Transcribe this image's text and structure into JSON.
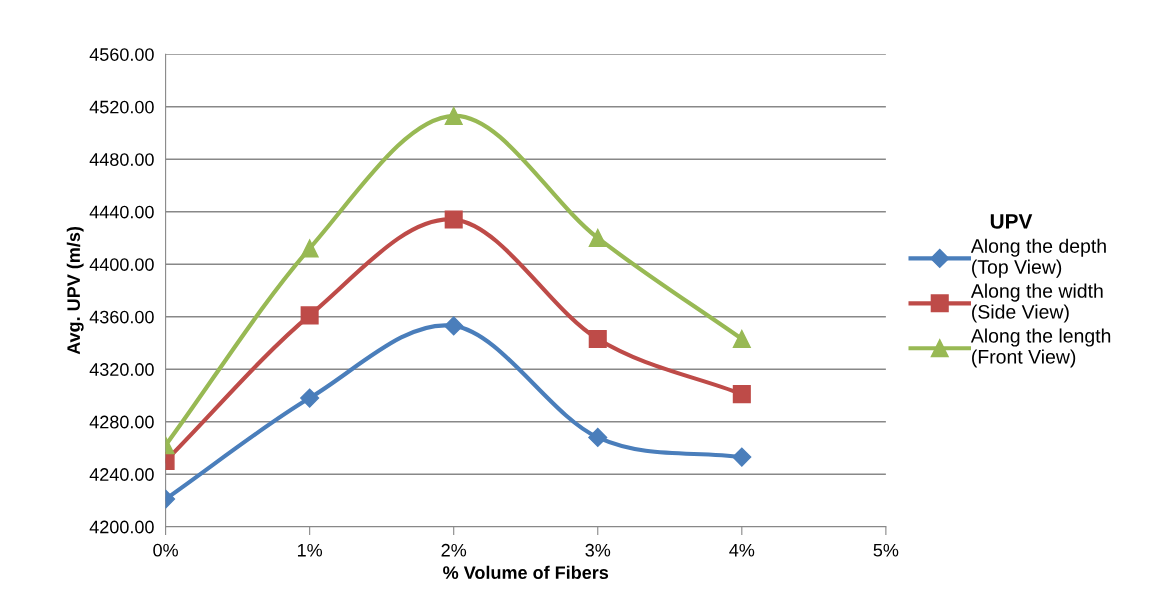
{
  "chart_data": {
    "type": "line",
    "xlabel": "% Volume of Fibers",
    "ylabel": "Avg. UPV (m/s)",
    "legend_title": "UPV",
    "x": [
      0,
      1,
      2,
      3,
      4
    ],
    "xlim": [
      0,
      5
    ],
    "xticks": [
      {
        "value": 0,
        "label": "0%"
      },
      {
        "value": 1,
        "label": "1%"
      },
      {
        "value": 2,
        "label": "2%"
      },
      {
        "value": 3,
        "label": "3%"
      },
      {
        "value": 4,
        "label": "4%"
      },
      {
        "value": 5,
        "label": "5%"
      }
    ],
    "ylim": [
      4200,
      4560
    ],
    "yticks": [
      {
        "value": 4200,
        "label": "4200.00"
      },
      {
        "value": 4240,
        "label": "4240.00"
      },
      {
        "value": 4280,
        "label": "4280.00"
      },
      {
        "value": 4320,
        "label": "4320.00"
      },
      {
        "value": 4360,
        "label": "4360.00"
      },
      {
        "value": 4400,
        "label": "4400.00"
      },
      {
        "value": 4440,
        "label": "4440.00"
      },
      {
        "value": 4480,
        "label": "4480.00"
      },
      {
        "value": 4520,
        "label": "4520.00"
      },
      {
        "value": 4560,
        "label": "4560.00"
      }
    ],
    "grid": "y",
    "legend": "right",
    "line_style": "solid",
    "series": [
      {
        "name": "Along the depth\n(Top View)",
        "color": "#4a7ebb",
        "marker": "diamond",
        "values": [
          4221,
          4298,
          4353,
          4268,
          4253
        ]
      },
      {
        "name": "Along the width\n(Side View)",
        "color": "#be4b48",
        "marker": "square",
        "values": [
          4250,
          4361,
          4434,
          4343,
          4301
        ]
      },
      {
        "name": "Along the length\n(Front View)",
        "color": "#98b954",
        "marker": "triangle",
        "values": [
          4262,
          4412,
          4513,
          4420,
          4343
        ]
      }
    ]
  }
}
